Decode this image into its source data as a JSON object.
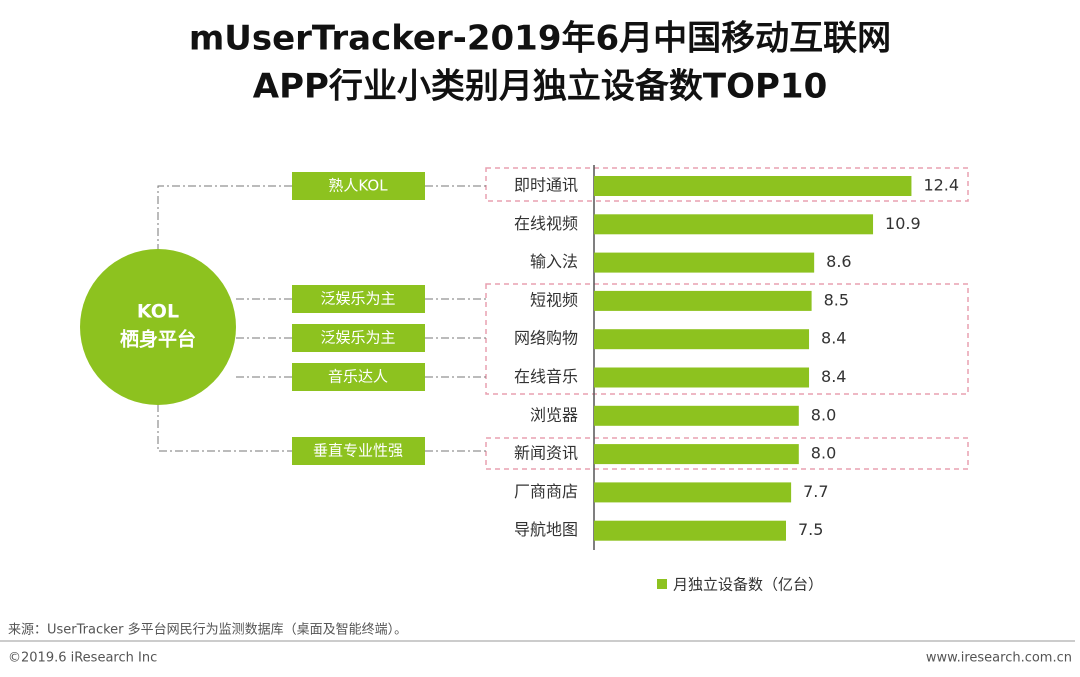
{
  "chart_data": {
    "type": "bar",
    "orientation": "horizontal",
    "title": [
      "mUserTracker-2019年6月中国移动互联网",
      "APP行业小类别月独立设备数TOP10"
    ],
    "categories": [
      "即时通讯",
      "在线视频",
      "输入法",
      "短视频",
      "网络购物",
      "在线音乐",
      "浏览器",
      "新闻资讯",
      "厂商商店",
      "导航地图"
    ],
    "values": [
      12.4,
      10.9,
      8.6,
      8.5,
      8.4,
      8.4,
      8.0,
      8.0,
      7.7,
      7.5
    ],
    "value_labels": [
      "12.4",
      "10.9",
      "8.6",
      "8.5",
      "8.4",
      "8.4",
      "8.0",
      "8.0",
      "7.7",
      "7.5"
    ],
    "series_name": "月独立设备数（亿台）",
    "color": "#8dc21f",
    "platform": [
      "KOL",
      "栖身平台"
    ],
    "tags": [
      "熟人KOL",
      "泛娱乐为主",
      "泛娱乐为主",
      "音乐达人",
      "垂直专业性强"
    ]
  },
  "footer": {
    "source": "来源：UserTracker 多平台网民行为监测数据库（桌面及智能终端）。",
    "copyright": "©2019.6 iResearch Inc",
    "website": "www.iresearch.com.cn"
  }
}
